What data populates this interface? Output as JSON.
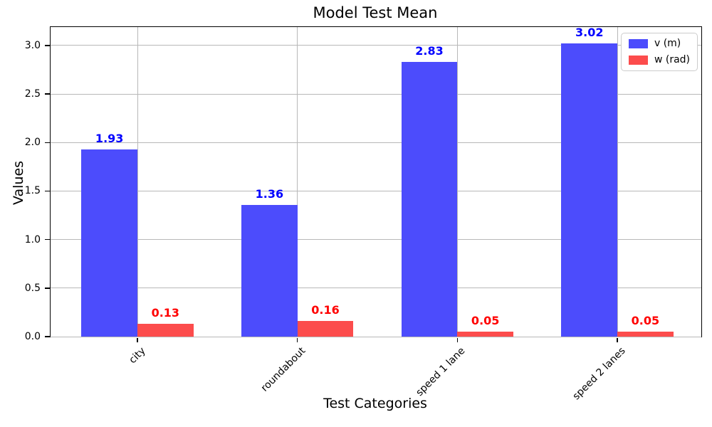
{
  "chart_data": {
    "type": "bar",
    "title": "Model Test Mean",
    "xlabel": "Test Categories",
    "ylabel": "Values",
    "categories": [
      "city",
      "roundabout",
      "speed 1 lane",
      "speed 2 lanes"
    ],
    "series": [
      {
        "name": "v (m)",
        "values": [
          1.93,
          1.36,
          2.83,
          3.02
        ],
        "color": "#4C4CFC",
        "label_color": "#0000FF"
      },
      {
        "name": "w (rad)",
        "values": [
          0.13,
          0.16,
          0.05,
          0.05
        ],
        "color": "#FC4C4C",
        "label_color": "#FF0000"
      }
    ],
    "yticks": [
      0.0,
      0.5,
      1.0,
      1.5,
      2.0,
      2.5,
      3.0
    ],
    "ylim": [
      0,
      3.19
    ],
    "xlim": [
      -0.543,
      3.525
    ],
    "bar_width_units": 0.35,
    "group_offset_units": 0.175,
    "grid": true,
    "grid_color": "#b8b8b8",
    "legend_position": "upper right",
    "value_label_decimals": 2,
    "ytick_decimals": 1
  }
}
